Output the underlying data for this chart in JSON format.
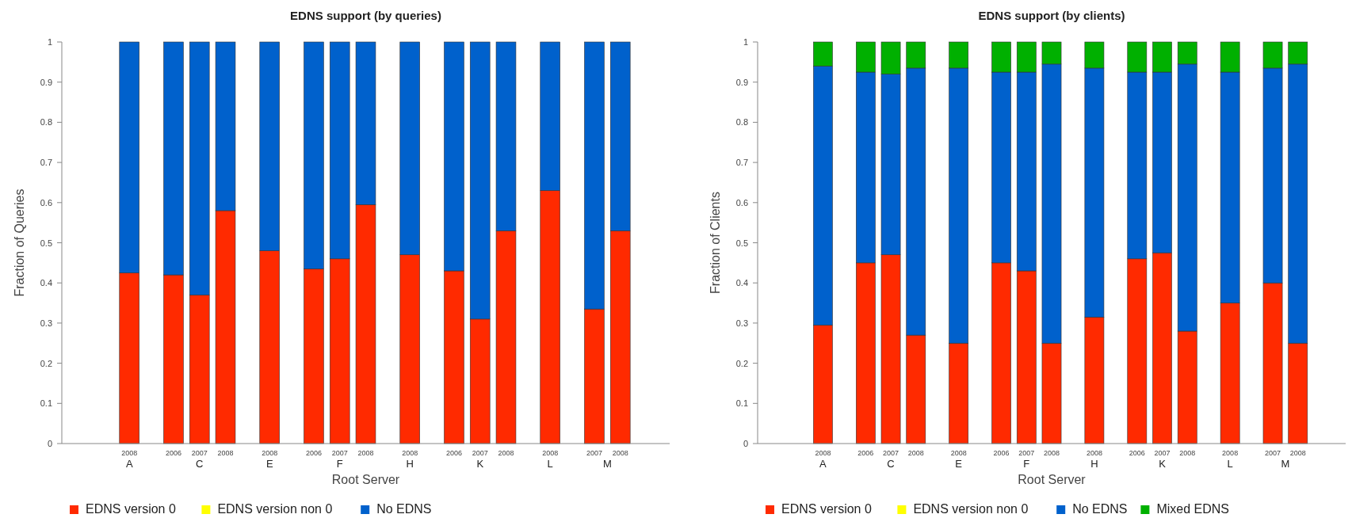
{
  "chart_data": [
    {
      "type": "bar",
      "title": "EDNS support (by queries)",
      "xlabel": "Root Server",
      "ylabel": "Fraction of Queries",
      "stacked": true,
      "legend": "bottom",
      "categories": [
        "2008",
        "2006",
        "2007",
        "2008",
        "2008",
        "2006",
        "2007",
        "2008",
        "2008",
        "2006",
        "2007",
        "2008",
        "2008",
        "2007",
        "2008"
      ],
      "annotations": [
        "A",
        "C",
        "E",
        "F",
        "H",
        "K",
        "L",
        "M"
      ],
      "ylim": [
        0,
        1
      ],
      "yticks": [
        0,
        0.1,
        0.2,
        0.3,
        0.4,
        0.5,
        0.6,
        0.7,
        0.8,
        0.9,
        1
      ],
      "series": [
        {
          "name": "EDNS version 0",
          "color": "#ff2a00",
          "values": [
            0.425,
            0.42,
            0.37,
            0.58,
            0.48,
            0.435,
            0.46,
            0.595,
            0.47,
            0.43,
            0.31,
            0.53,
            0.63,
            0.335,
            0.53
          ]
        },
        {
          "name": "EDNS version non 0",
          "color": "#ffff00",
          "values": [
            0,
            0,
            0,
            0,
            0,
            0,
            0,
            0,
            0,
            0,
            0,
            0,
            0,
            0,
            0
          ]
        },
        {
          "name": "No EDNS",
          "color": "#0061cc",
          "values": [
            0.575,
            0.58,
            0.63,
            0.42,
            0.52,
            0.565,
            0.54,
            0.405,
            0.53,
            0.57,
            0.69,
            0.47,
            0.37,
            0.665,
            0.47
          ]
        }
      ]
    },
    {
      "type": "bar",
      "title": "EDNS support (by clients)",
      "xlabel": "Root Server",
      "ylabel": "Fraction of Clients",
      "stacked": true,
      "legend": "bottom",
      "categories": [
        "2008",
        "2006",
        "2007",
        "2008",
        "2008",
        "2006",
        "2007",
        "2008",
        "2008",
        "2006",
        "2007",
        "2008",
        "2008",
        "2007",
        "2008"
      ],
      "annotations": [
        "A",
        "C",
        "E",
        "F",
        "H",
        "K",
        "L",
        "M"
      ],
      "ylim": [
        0,
        1
      ],
      "yticks": [
        0,
        0.1,
        0.2,
        0.3,
        0.4,
        0.5,
        0.6,
        0.7,
        0.8,
        0.9,
        1
      ],
      "series": [
        {
          "name": "EDNS version 0",
          "color": "#ff2a00",
          "values": [
            0.295,
            0.45,
            0.47,
            0.27,
            0.25,
            0.45,
            0.43,
            0.25,
            0.315,
            0.46,
            0.475,
            0.28,
            0.35,
            0.4,
            0.25
          ]
        },
        {
          "name": "EDNS version non 0",
          "color": "#ffff00",
          "values": [
            0,
            0,
            0,
            0,
            0,
            0,
            0,
            0,
            0,
            0,
            0,
            0,
            0,
            0,
            0
          ]
        },
        {
          "name": "No EDNS",
          "color": "#0061cc",
          "values": [
            0.645,
            0.475,
            0.45,
            0.665,
            0.685,
            0.475,
            0.495,
            0.695,
            0.62,
            0.465,
            0.45,
            0.665,
            0.575,
            0.535,
            0.695
          ]
        },
        {
          "name": "Mixed EDNS",
          "color": "#00b000",
          "values": [
            0.06,
            0.075,
            0.08,
            0.065,
            0.065,
            0.075,
            0.075,
            0.055,
            0.065,
            0.075,
            0.075,
            0.055,
            0.075,
            0.065,
            0.055
          ]
        }
      ]
    }
  ]
}
